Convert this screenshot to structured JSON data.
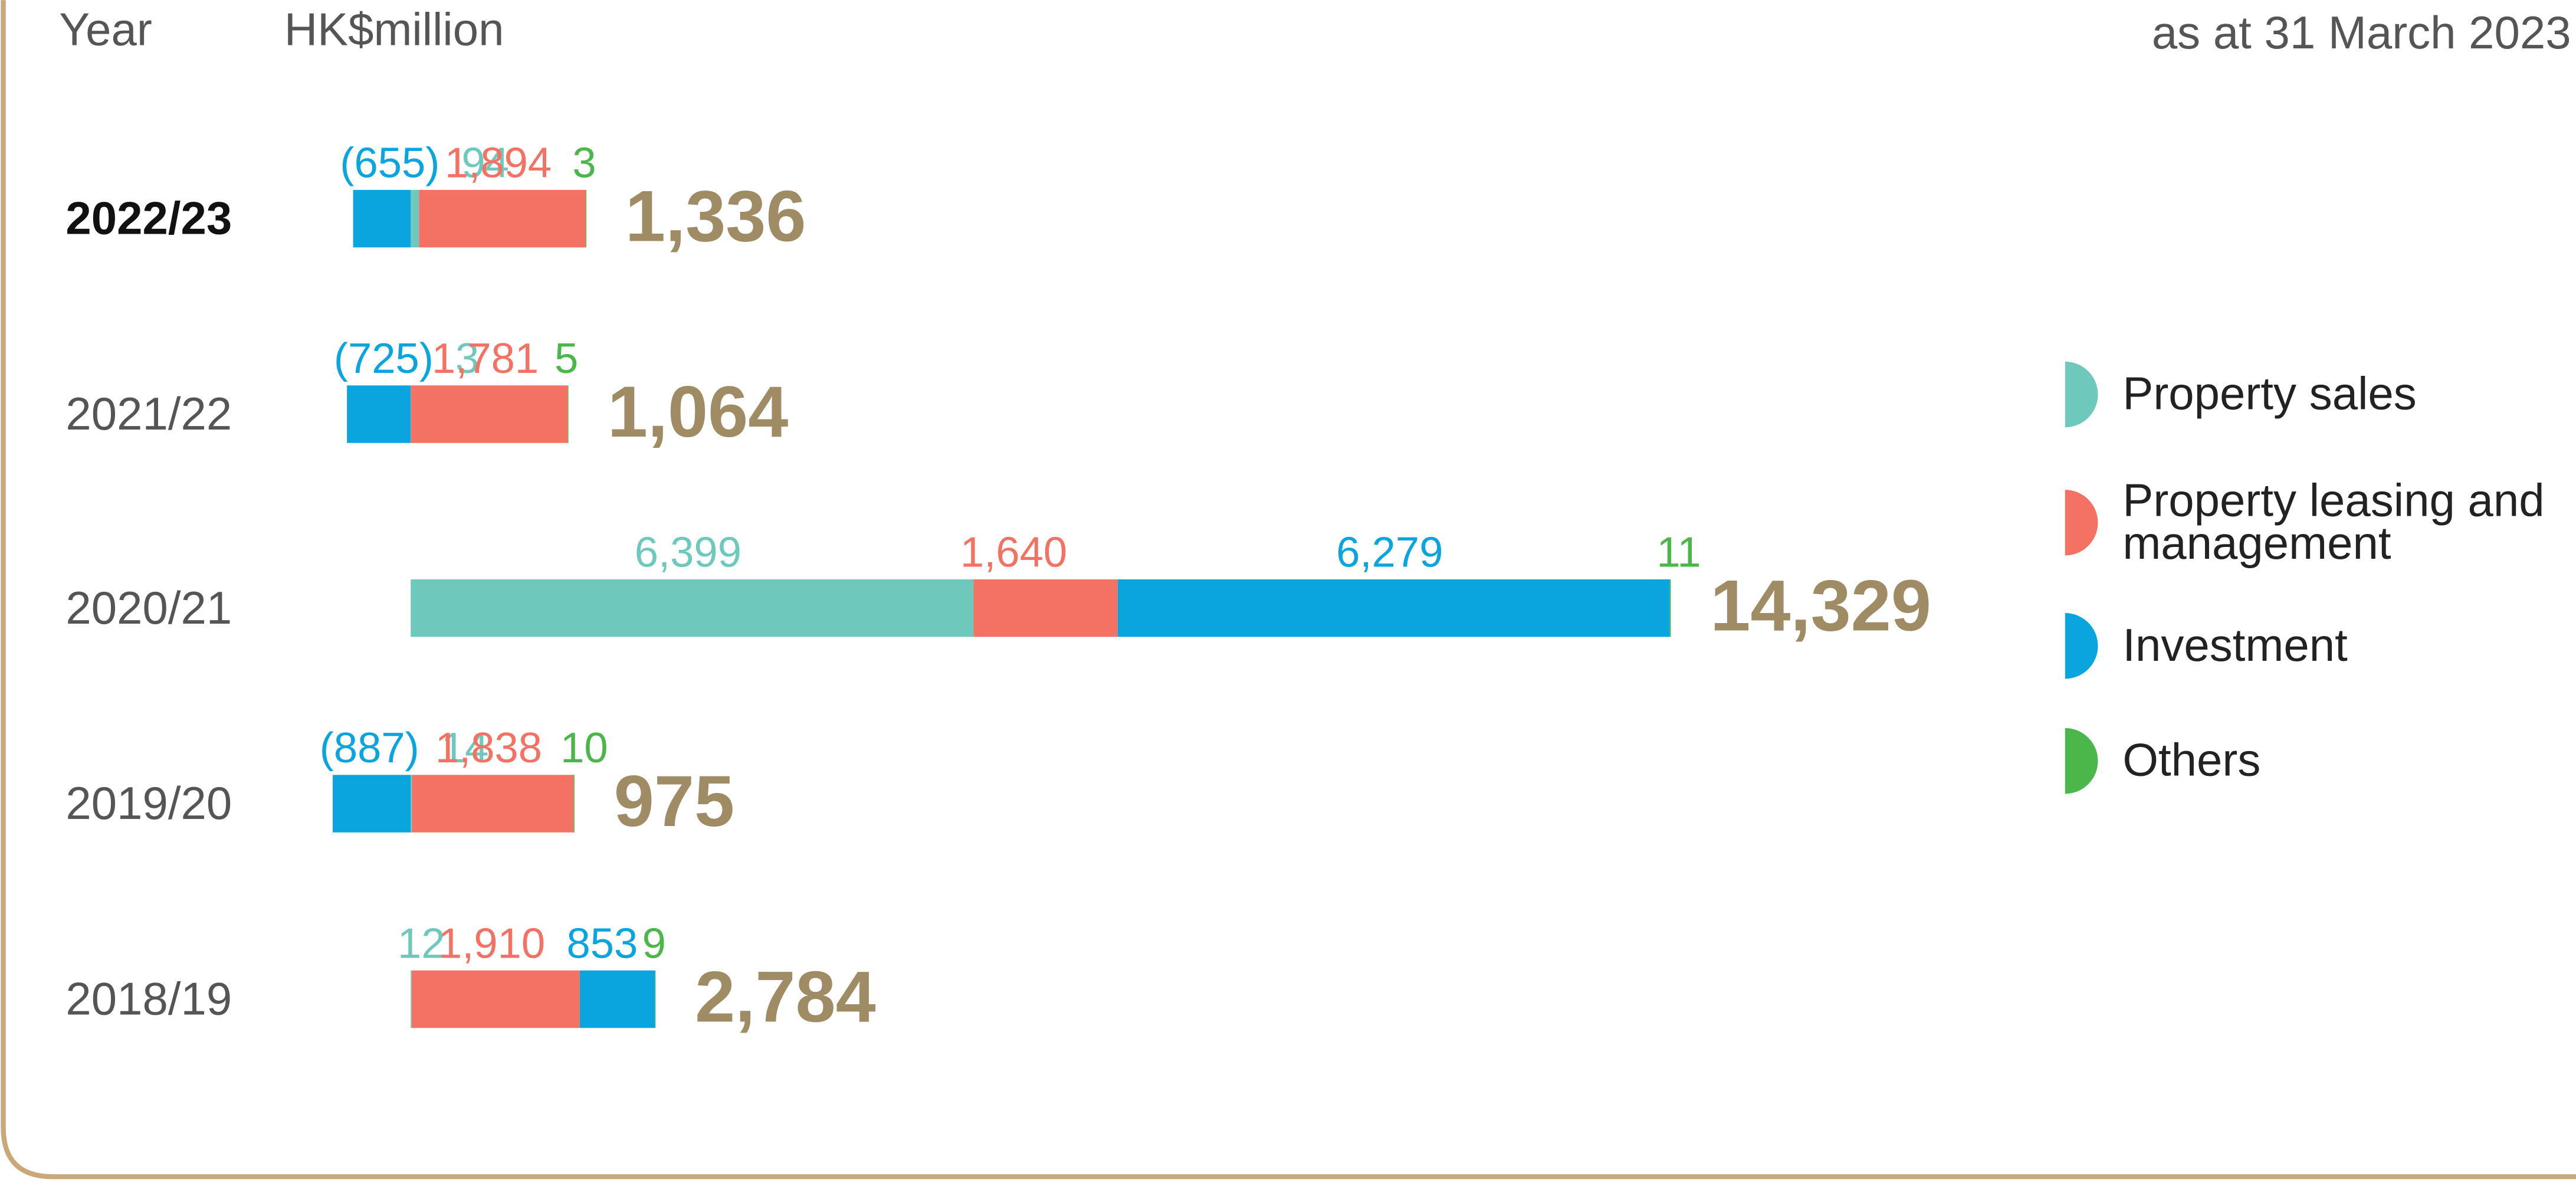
{
  "chart_data": {
    "type": "stacked-bar-horizontal",
    "header": {
      "category_label": "Year",
      "unit": "HK$million",
      "note": "as at 31 March 2023"
    },
    "categories": [
      "2022/23",
      "2021/22",
      "2020/21",
      "2019/20",
      "2018/19"
    ],
    "series": [
      {
        "name": "Property sales",
        "color": "#6ec9bc",
        "values": [
          94,
          3,
          6399,
          14,
          12
        ],
        "value_labels": [
          "94",
          "3",
          "6,399",
          "14",
          "12"
        ]
      },
      {
        "name": "Property leasing and management",
        "color": "#f37264",
        "values": [
          1894,
          1781,
          1640,
          1838,
          1910
        ],
        "value_labels": [
          "1,894",
          "1,781",
          "1,640",
          "1,838",
          "1,910"
        ]
      },
      {
        "name": "Investment",
        "color": "#0aa5de",
        "values": [
          -655,
          -725,
          6279,
          -887,
          853
        ],
        "value_labels": [
          "(655)",
          "(725)",
          "6,279",
          "(887)",
          "853"
        ]
      },
      {
        "name": "Others",
        "color": "#4bb649",
        "values": [
          3,
          5,
          11,
          10,
          9
        ],
        "value_labels": [
          "3",
          "5",
          "11",
          "10",
          "9"
        ]
      }
    ],
    "totals": [
      1336,
      1064,
      14329,
      975,
      2784
    ],
    "total_labels": [
      "1,336",
      "1,064",
      "14,329",
      "975",
      "2,784"
    ]
  }
}
